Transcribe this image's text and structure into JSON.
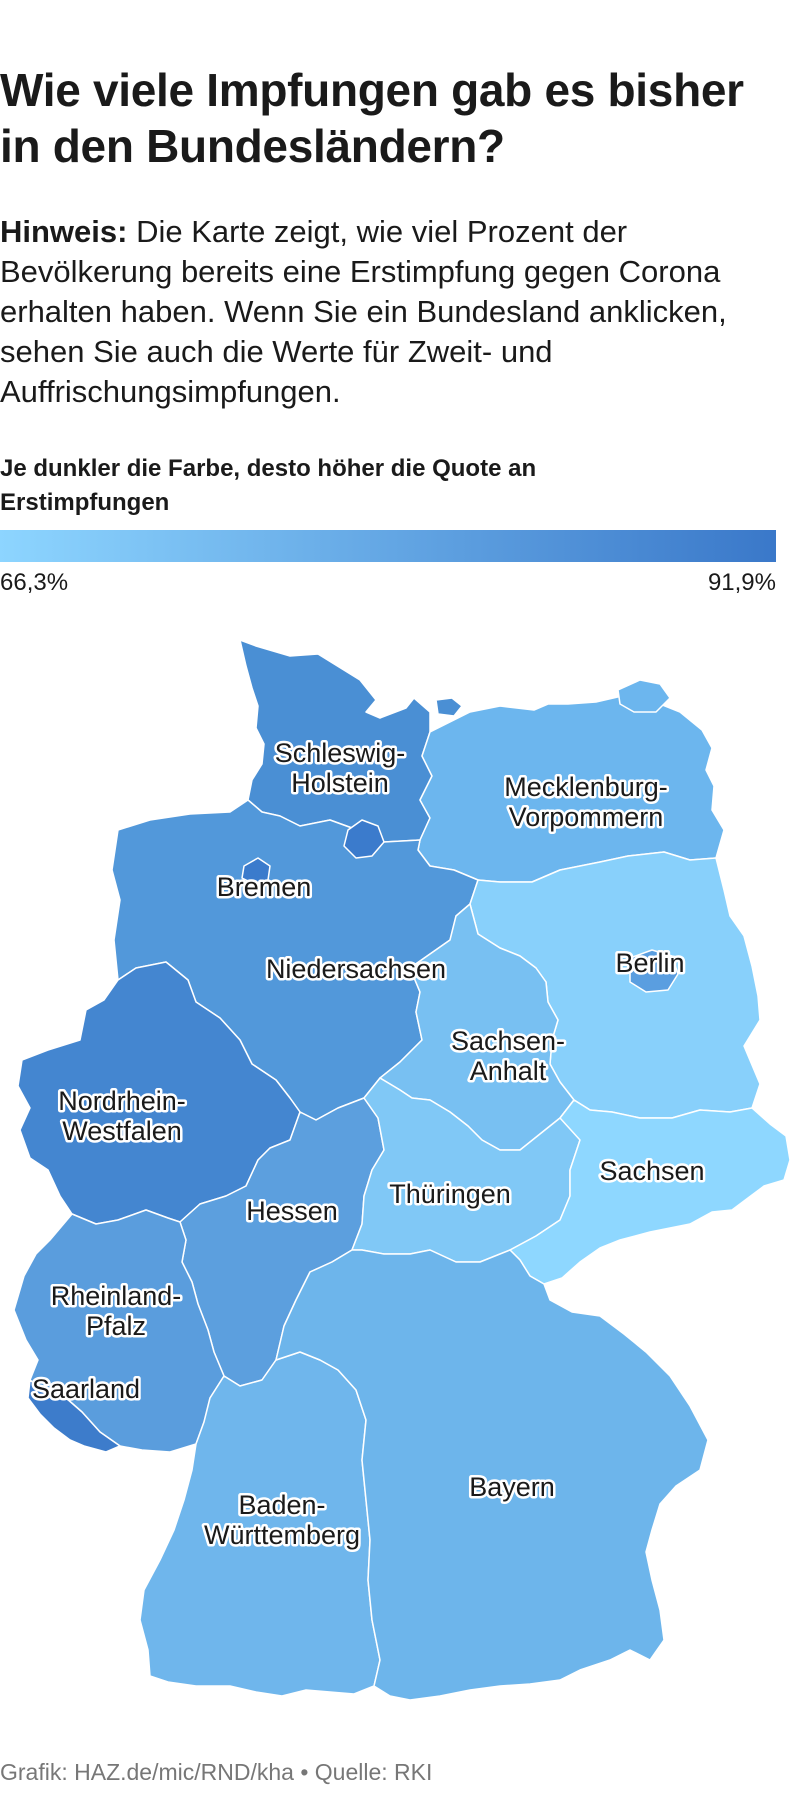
{
  "title": "Wie viele Impfungen gab es bisher in den Bundesländern?",
  "note": {
    "label": "Hinweis:",
    "text": " Die Karte zeigt, wie viel Prozent der Bevölkerung bereits eine Erstimpfung gegen Corona erhalten haben. Wenn Sie ein Bundesland anklicken, sehen Sie auch die Werte für Zweit- und Auffrischungsimpfungen."
  },
  "legend": {
    "title": "Je dunkler die Farbe, desto höher die Quote an Erstimpfungen",
    "min_label": "66,3%",
    "max_label": "91,9%",
    "color_low": "#8dd5ff",
    "color_high": "#3a78c9"
  },
  "states": [
    {
      "id": "sh",
      "label_lines": [
        "Schleswig-",
        "Holstein"
      ],
      "color": "#4a8fd4"
    },
    {
      "id": "hh",
      "label_lines": [],
      "color": "#3b7bcc"
    },
    {
      "id": "mv",
      "label_lines": [
        "Mecklenburg-",
        "Vorpommern"
      ],
      "color": "#6cb6ee"
    },
    {
      "id": "hb",
      "label_lines": [
        "Bremen"
      ],
      "color": "#3b7bcc"
    },
    {
      "id": "ni",
      "label_lines": [
        "Niedersachsen"
      ],
      "color": "#5298da"
    },
    {
      "id": "be",
      "label_lines": [
        "Berlin"
      ],
      "color": "#5a9ee0"
    },
    {
      "id": "bb",
      "label_lines": [],
      "color": "#88d0fb"
    },
    {
      "id": "st",
      "label_lines": [
        "Sachsen-",
        "Anhalt"
      ],
      "color": "#78c0f2"
    },
    {
      "id": "nw",
      "label_lines": [
        "Nordrhein-",
        "Westfalen"
      ],
      "color": "#4486d0"
    },
    {
      "id": "he",
      "label_lines": [
        "Hessen"
      ],
      "color": "#5c9fde"
    },
    {
      "id": "th",
      "label_lines": [
        "Thüringen"
      ],
      "color": "#80c8f6"
    },
    {
      "id": "sn",
      "label_lines": [
        "Sachsen"
      ],
      "color": "#8ed7ff"
    },
    {
      "id": "rp",
      "label_lines": [
        "Rheinland-",
        "Pfalz"
      ],
      "color": "#5a9ddd"
    },
    {
      "id": "sl",
      "label_lines": [
        "Saarland"
      ],
      "color": "#3d7ccb"
    },
    {
      "id": "bw",
      "label_lines": [
        "Baden-",
        "Württemberg"
      ],
      "color": "#6fb6ec"
    },
    {
      "id": "by",
      "label_lines": [
        "Bayern"
      ],
      "color": "#6db5eb"
    }
  ],
  "footer": "Grafik: HAZ.de/mic/RND/kha • Quelle: RKI"
}
